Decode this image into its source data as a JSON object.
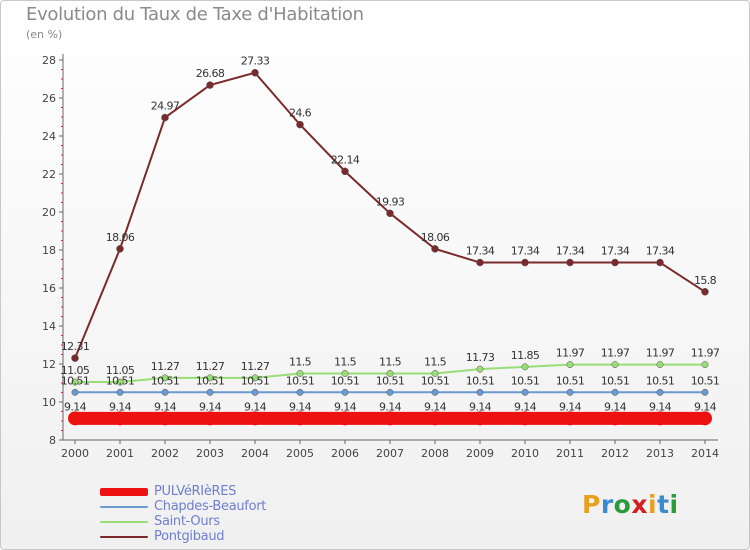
{
  "header": {
    "title": "Evolution du Taux de Taxe d'Habitation",
    "unit": "(en %)"
  },
  "logo": {
    "text": "Proxiti",
    "colors": [
      "#e8a020",
      "#3a8ad0",
      "#2a9a3a",
      "#d02020",
      "#e8a020",
      "#3a8ad0",
      "#2a9a3a"
    ]
  },
  "chart_data": {
    "type": "line",
    "x": [
      "2000",
      "2001",
      "2002",
      "2003",
      "2004",
      "2005",
      "2006",
      "2007",
      "2008",
      "2009",
      "2010",
      "2011",
      "2012",
      "2013",
      "2014"
    ],
    "ylim": [
      8,
      28
    ],
    "yticks": [
      8,
      10,
      12,
      14,
      16,
      18,
      20,
      22,
      24,
      26,
      28
    ],
    "grid": false,
    "legend_position": "bottom-left",
    "series": [
      {
        "name": "PULVéRIèRES",
        "color": "#ee1111",
        "values": [
          9.14,
          9.14,
          9.14,
          9.14,
          9.14,
          9.14,
          9.14,
          9.14,
          9.14,
          9.14,
          9.14,
          9.14,
          9.14,
          9.14,
          9.14
        ],
        "labels": [
          "9.14",
          "9.14",
          "9.14",
          "9.14",
          "9.14",
          "9.14",
          "9.14",
          "9.14",
          "9.14",
          "9.14",
          "9.14",
          "9.14",
          "9.14",
          "9.14",
          "9.14"
        ]
      },
      {
        "name": "Chapdes-Beaufort",
        "color": "#6a9acf",
        "values": [
          10.51,
          10.51,
          10.51,
          10.51,
          10.51,
          10.51,
          10.51,
          10.51,
          10.51,
          10.51,
          10.51,
          10.51,
          10.51,
          10.51,
          10.51
        ],
        "labels": [
          "10.51",
          "10.51",
          "10.51",
          "10.51",
          "10.51",
          "10.51",
          "10.51",
          "10.51",
          "10.51",
          "10.51",
          "10.51",
          "10.51",
          "10.51",
          "10.51",
          "10.51"
        ]
      },
      {
        "name": "Saint-Ours",
        "color": "#99dd77",
        "values": [
          11.05,
          11.05,
          11.27,
          11.27,
          11.27,
          11.5,
          11.5,
          11.5,
          11.5,
          11.73,
          11.85,
          11.97,
          11.97,
          11.97,
          11.97
        ],
        "labels": [
          "11.05",
          "11.05",
          "11.27",
          "11.27",
          "11.27",
          "11.5",
          "11.5",
          "11.5",
          "11.5",
          "11.73",
          "11.85",
          "11.97",
          "11.97",
          "11.97",
          "11.97"
        ]
      },
      {
        "name": "Pontgibaud",
        "color": "#7a2a2a",
        "values": [
          12.31,
          18.06,
          24.97,
          26.68,
          27.33,
          24.6,
          22.14,
          19.93,
          18.06,
          17.34,
          17.34,
          17.34,
          17.34,
          17.34,
          15.8
        ],
        "labels": [
          "12.31",
          "18.06",
          "24.97",
          "26.68",
          "27.33",
          "24.6",
          "22.14",
          "19.93",
          "18.06",
          "17.34",
          "17.34",
          "17.34",
          "17.34",
          "17.34",
          "15.8"
        ]
      }
    ]
  }
}
